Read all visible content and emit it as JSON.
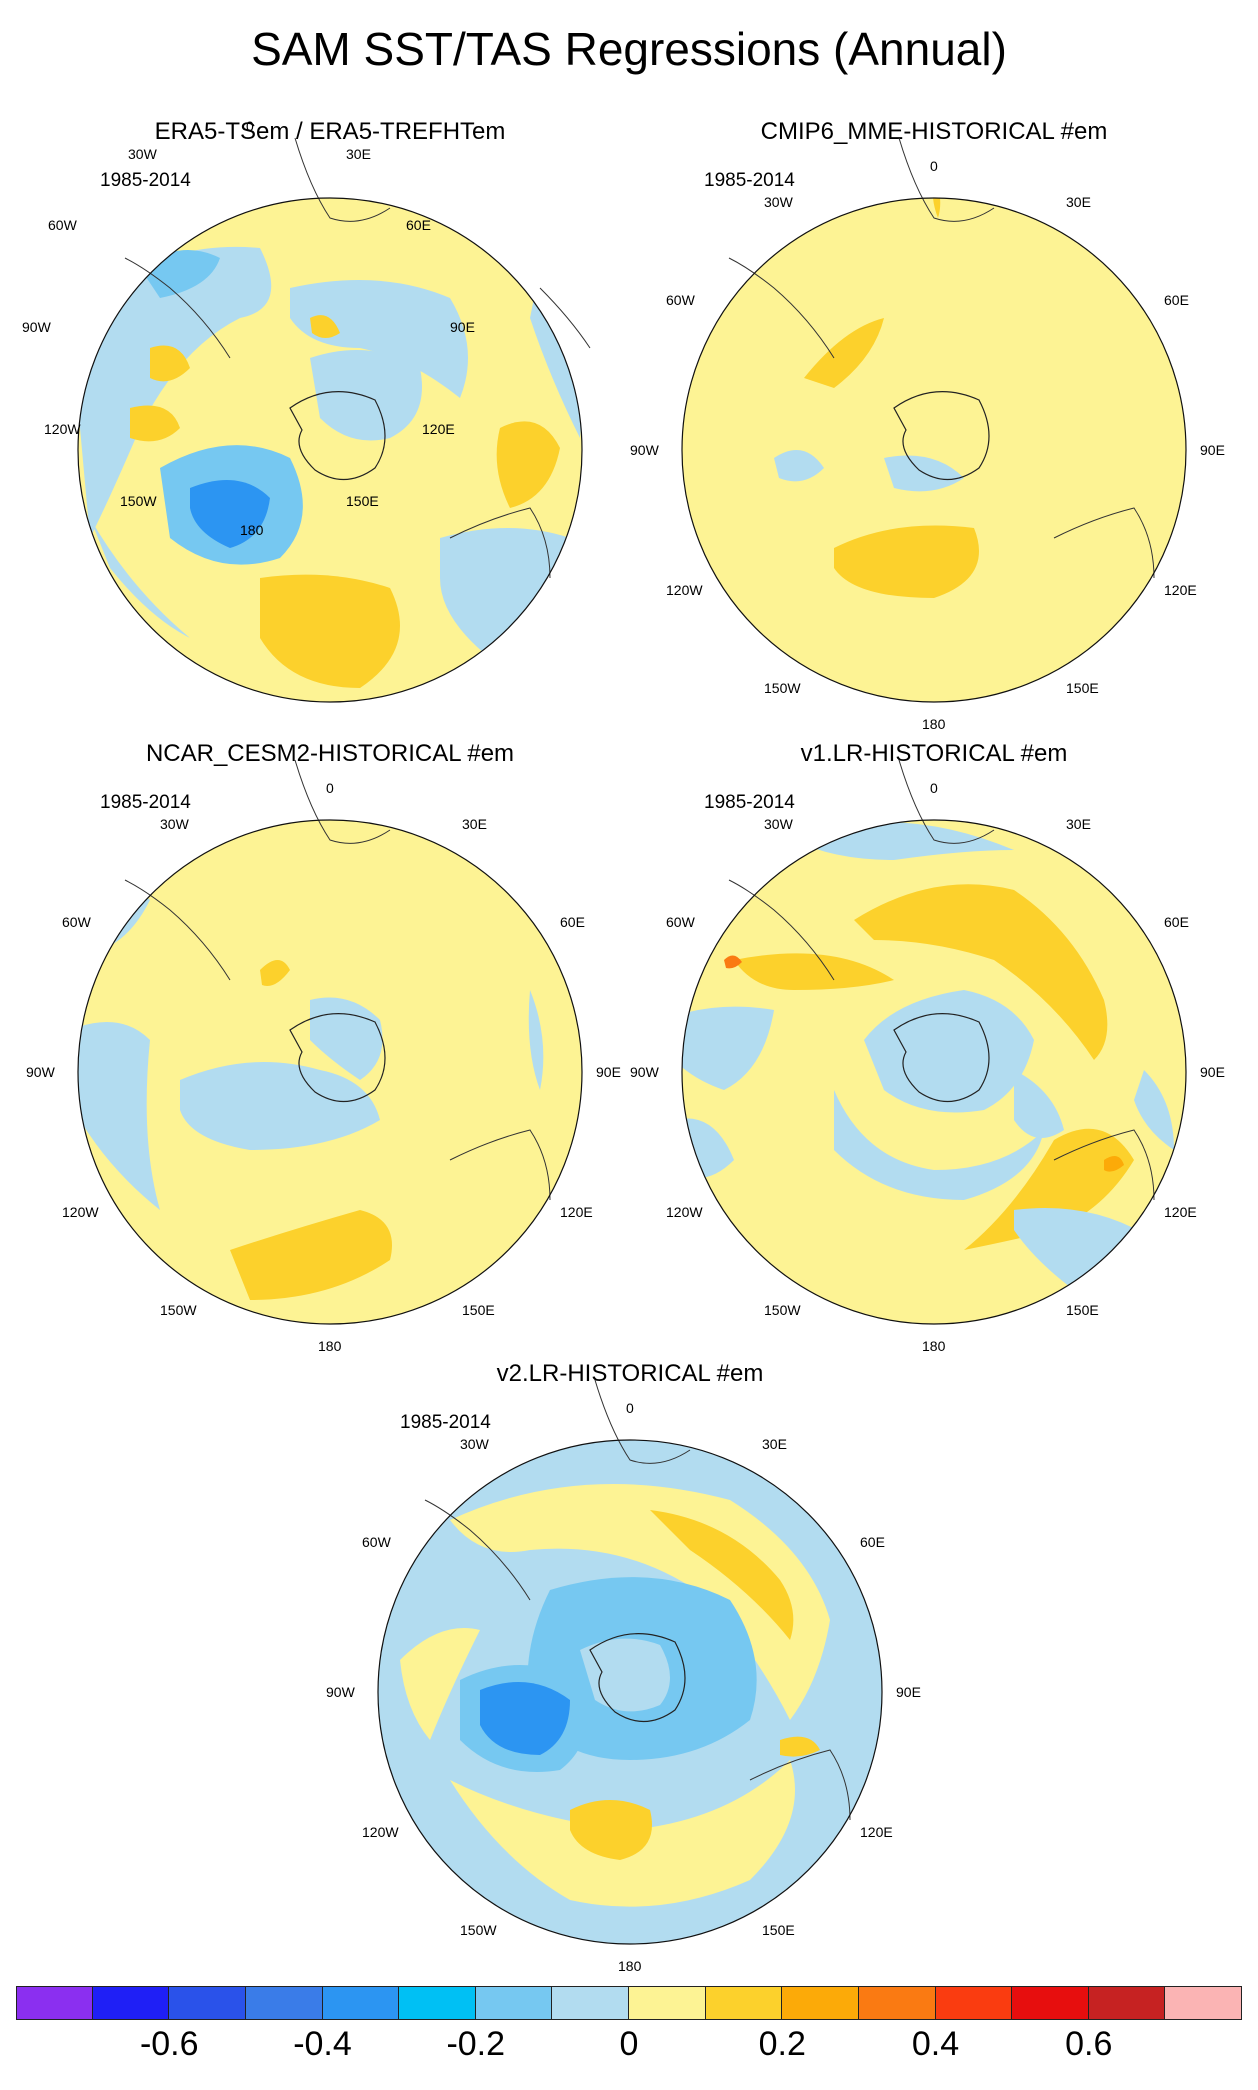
{
  "title": "SAM SST/TAS Regressions (Annual)",
  "panels": [
    {
      "title": "ERA5-TSem / ERA5-TREFHTem",
      "period": "1985-2014"
    },
    {
      "title": "CMIP6_MME-HISTORICAL  #em",
      "period": "1985-2014"
    },
    {
      "title": "NCAR_CESM2-HISTORICAL  #em",
      "period": "1985-2014"
    },
    {
      "title": "v1.LR-HISTORICAL  #em",
      "period": "1985-2014"
    },
    {
      "title": "v2.LR-HISTORICAL  #em",
      "period": "1985-2014"
    }
  ],
  "lon_labels": {
    "0": "0",
    "30E": "30E",
    "60E": "60E",
    "90E": "90E",
    "120E": "120E",
    "150E": "150E",
    "180": "180",
    "150W": "150W",
    "120W": "120W",
    "90W": "90W",
    "60W": "60W",
    "30W": "30W"
  },
  "colorbar": {
    "colors": [
      "#8b2ff0",
      "#1f1ff6",
      "#2a52ea",
      "#3a7ce8",
      "#2c95f2",
      "#00c0f4",
      "#76c8f1",
      "#b2dcf0",
      "#fdf394",
      "#fcd12c",
      "#fcaa08",
      "#fa7a12",
      "#fa3c10",
      "#e70e0e",
      "#c62222",
      "#fbb4b4"
    ],
    "labels": [
      "-0.6",
      "-0.4",
      "-0.2",
      "0",
      "0.2",
      "0.4",
      "0.6"
    ],
    "label_values": [
      -0.6,
      -0.4,
      -0.2,
      0,
      0.2,
      0.4,
      0.6
    ]
  }
}
